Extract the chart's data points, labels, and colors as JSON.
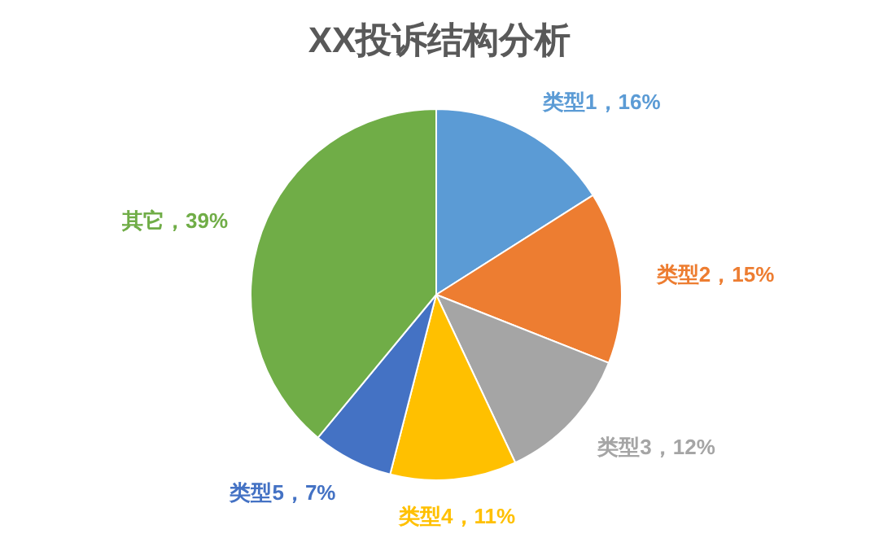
{
  "chart_data": {
    "type": "pie",
    "title": "XX投诉结构分析",
    "categories": [
      "类型1",
      "类型2",
      "类型3",
      "类型4",
      "类型5",
      "其它"
    ],
    "values": [
      16,
      15,
      12,
      11,
      7,
      39
    ],
    "colors": [
      "#5b9bd5",
      "#ed7d31",
      "#a5a5a5",
      "#ffc000",
      "#4472c4",
      "#70ad47"
    ],
    "value_labels": [
      "，16%",
      "，15%",
      "，12%",
      "，11%",
      "，7%",
      "，39%"
    ]
  }
}
